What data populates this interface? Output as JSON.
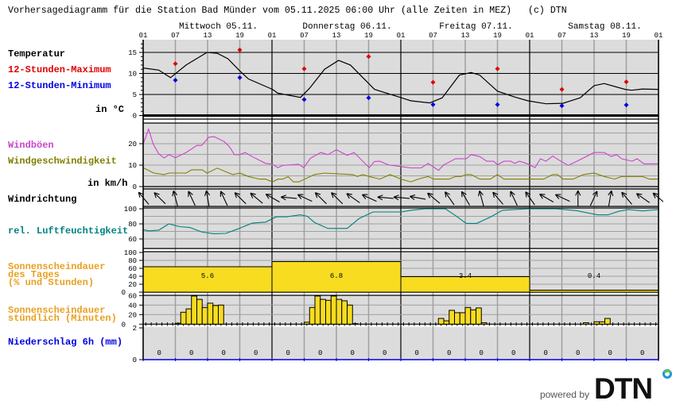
{
  "title": "Vorhersagediagramm für die Station Bad Münder vom 05.11.2025 06:00 Uhr (alle Zeiten in MEZ)   (c) DTN",
  "days": [
    "Mittwoch 05.11.",
    "Donnerstag 06.11.",
    "Freitag 07.11.",
    "Samstag 08.11."
  ],
  "hour_labels": [
    "01",
    "07",
    "13",
    "19",
    "01",
    "07",
    "13",
    "19",
    "01",
    "07",
    "13",
    "19",
    "01",
    "07",
    "13",
    "19",
    "01"
  ],
  "labels": {
    "temperature": "Temperatur",
    "max12": "12-Stunden-Maximum",
    "min12": "12-Stunden-Minimum",
    "temp_unit": "in °C",
    "gusts": "Windböen",
    "wind_speed": "Windgeschwindigkeit",
    "wind_unit": "in km/h",
    "wind_dir": "Windrichtung",
    "humidity": "rel. Luftfeuchtigkeit",
    "sun_day_1": "Sonnenscheindauer",
    "sun_day_2": "des Tages",
    "sun_day_3": "(% und Stunden)",
    "sun_hour_1": "Sonnenscheindauer",
    "sun_hour_2": "stündlich (Minuten)",
    "precip": "Niederschlag 6h (mm)"
  },
  "colors": {
    "panel_bg": "#dcdcdc",
    "grid": "#a0a0a0",
    "max": "#e00000",
    "min": "#0000e0",
    "gusts": "#cc44cc",
    "wind": "#808000",
    "humidity": "#008080",
    "sun_label": "#e8a020",
    "sun_fill": "#f8dc20",
    "precip": "#0000e0"
  },
  "chart_data": {
    "type": "line",
    "x_unit": "hours since 05.11. 01:00",
    "x_range": [
      0,
      96
    ],
    "temperature": {
      "ylim": [
        0,
        18
      ],
      "ticks": [
        "0",
        "5",
        "10",
        "15"
      ],
      "tick_values": [
        0,
        5,
        10,
        15
      ],
      "series": [
        [
          0,
          11.3
        ],
        [
          2.9,
          10.8
        ],
        [
          5.1,
          9.0
        ],
        [
          8,
          12
        ],
        [
          11.9,
          15.0
        ],
        [
          13.8,
          14.8
        ],
        [
          15.8,
          13.5
        ],
        [
          18,
          10.6
        ],
        [
          19.6,
          8.7
        ],
        [
          24.1,
          6.2
        ],
        [
          25.1,
          5.3
        ],
        [
          29.3,
          4.3
        ],
        [
          31,
          6.5
        ],
        [
          33.8,
          11
        ],
        [
          36.4,
          13.1
        ],
        [
          38.6,
          12
        ],
        [
          43.1,
          6.2
        ],
        [
          47.9,
          4.3
        ],
        [
          49.9,
          3.5
        ],
        [
          53.4,
          3.0
        ],
        [
          55.7,
          4.2
        ],
        [
          58.9,
          9.6
        ],
        [
          61.1,
          10.2
        ],
        [
          62.7,
          9.6
        ],
        [
          66,
          5.8
        ],
        [
          69.2,
          4.4
        ],
        [
          71.7,
          3.5
        ],
        [
          75,
          2.8
        ],
        [
          78.2,
          2.9
        ],
        [
          81.4,
          4.2
        ],
        [
          84,
          7.1
        ],
        [
          85.9,
          7.6
        ],
        [
          89.8,
          6.2
        ],
        [
          91,
          6.0
        ],
        [
          93,
          6.3
        ],
        [
          96,
          6.2
        ]
      ],
      "max12": [
        [
          6,
          12.3
        ],
        [
          18,
          15.6
        ],
        [
          30,
          11.1
        ],
        [
          42,
          14.0
        ],
        [
          54,
          7.9
        ],
        [
          66,
          11.1
        ],
        [
          78,
          6.2
        ],
        [
          90,
          8.0
        ]
      ],
      "min12": [
        [
          6,
          8.4
        ],
        [
          18,
          9.0
        ],
        [
          30,
          3.8
        ],
        [
          42,
          4.2
        ],
        [
          54,
          2.6
        ],
        [
          66,
          2.6
        ],
        [
          78,
          2.3
        ],
        [
          90,
          2.5
        ]
      ]
    },
    "wind": {
      "ylim": [
        0,
        29
      ],
      "ticks": [
        "0",
        "10",
        "20"
      ],
      "tick_values": [
        0,
        10,
        20
      ],
      "gusts": [
        [
          0,
          19.7
        ],
        [
          1,
          26.8
        ],
        [
          1.9,
          19.7
        ],
        [
          2.9,
          15.3
        ],
        [
          3.9,
          13.3
        ],
        [
          4.8,
          14.9
        ],
        [
          6,
          13.5
        ],
        [
          8,
          15.9
        ],
        [
          10,
          19.2
        ],
        [
          10.9,
          19.2
        ],
        [
          12.2,
          23
        ],
        [
          13.2,
          23.3
        ],
        [
          15.1,
          21
        ],
        [
          16.1,
          18.5
        ],
        [
          17,
          14.9
        ],
        [
          18,
          14.9
        ],
        [
          19,
          15.9
        ],
        [
          20.3,
          14
        ],
        [
          22.8,
          10.8
        ],
        [
          24.1,
          10.4
        ],
        [
          25.1,
          8.8
        ],
        [
          26,
          9.9
        ],
        [
          29,
          10.4
        ],
        [
          29.9,
          8.8
        ],
        [
          31.2,
          13.3
        ],
        [
          33.1,
          15.9
        ],
        [
          34.4,
          14.9
        ],
        [
          36,
          17.2
        ],
        [
          38,
          14.6
        ],
        [
          39.3,
          15.9
        ],
        [
          42.1,
          8.8
        ],
        [
          43.1,
          11.7
        ],
        [
          44.1,
          11.8
        ],
        [
          45.7,
          10.1
        ],
        [
          49.9,
          8.7
        ],
        [
          51.8,
          8.7
        ],
        [
          53.1,
          10.8
        ],
        [
          55,
          7.6
        ],
        [
          56,
          10.1
        ],
        [
          58.2,
          13
        ],
        [
          60.2,
          13
        ],
        [
          61.1,
          14.9
        ],
        [
          62.7,
          14
        ],
        [
          64,
          11.8
        ],
        [
          65.3,
          11.8
        ],
        [
          66,
          10.1
        ],
        [
          67.2,
          11.8
        ],
        [
          68.5,
          11.8
        ],
        [
          69.2,
          10.8
        ],
        [
          70.1,
          11.8
        ],
        [
          71.4,
          10.8
        ],
        [
          73,
          8.8
        ],
        [
          74,
          13
        ],
        [
          75,
          11.8
        ],
        [
          76.3,
          14.2
        ],
        [
          77.5,
          12.3
        ],
        [
          79.2,
          9.9
        ],
        [
          80.8,
          11.8
        ],
        [
          84,
          15.9
        ],
        [
          85.9,
          15.9
        ],
        [
          87.2,
          14
        ],
        [
          88.2,
          14.9
        ],
        [
          89.1,
          13
        ],
        [
          91.1,
          11.8
        ],
        [
          92,
          13
        ],
        [
          93.3,
          10.6
        ],
        [
          96,
          10.6
        ]
      ],
      "speed": [
        [
          0,
          8.8
        ],
        [
          2,
          6.3
        ],
        [
          3.9,
          5.6
        ],
        [
          4.8,
          6.3
        ],
        [
          8,
          6.3
        ],
        [
          9,
          7.8
        ],
        [
          11,
          7.8
        ],
        [
          11.9,
          6.3
        ],
        [
          13.8,
          8.6
        ],
        [
          16.7,
          5.6
        ],
        [
          18,
          6.3
        ],
        [
          19.6,
          4.7
        ],
        [
          21.6,
          3.5
        ],
        [
          22.8,
          3.5
        ],
        [
          24.1,
          2.2
        ],
        [
          25.1,
          3.5
        ],
        [
          26,
          3.5
        ],
        [
          27,
          4.6
        ],
        [
          28,
          2.2
        ],
        [
          29,
          2.2
        ],
        [
          31.9,
          5.6
        ],
        [
          33.8,
          6.3
        ],
        [
          39,
          5.6
        ],
        [
          39.9,
          4.7
        ],
        [
          40.9,
          5.6
        ],
        [
          42.1,
          4.7
        ],
        [
          44.1,
          3.5
        ],
        [
          46,
          5.6
        ],
        [
          48,
          3.5
        ],
        [
          49.9,
          2.2
        ],
        [
          51.2,
          3.5
        ],
        [
          53.1,
          4.7
        ],
        [
          54.1,
          3.5
        ],
        [
          57,
          3.5
        ],
        [
          58.2,
          4.7
        ],
        [
          59.2,
          4.7
        ],
        [
          60.2,
          5.6
        ],
        [
          61.1,
          5.6
        ],
        [
          62.7,
          3.5
        ],
        [
          64.7,
          3.5
        ],
        [
          66,
          5.6
        ],
        [
          67.2,
          3.5
        ],
        [
          74.6,
          3.5
        ],
        [
          76.3,
          5.6
        ],
        [
          77.2,
          5.6
        ],
        [
          78.2,
          3.5
        ],
        [
          80.1,
          3.5
        ],
        [
          82,
          5.6
        ],
        [
          84,
          6.3
        ],
        [
          85.9,
          4.7
        ],
        [
          87.8,
          3.5
        ],
        [
          89.1,
          4.7
        ],
        [
          93,
          4.7
        ],
        [
          94.3,
          3.5
        ],
        [
          96,
          3.5
        ]
      ]
    },
    "wind_direction_deg": [
      320,
      315,
      345,
      335,
      350,
      335,
      315,
      310,
      300,
      275,
      295,
      315,
      315,
      305,
      295,
      275,
      275,
      280,
      310,
      325,
      330,
      345,
      320,
      335,
      325,
      300,
      295,
      0,
      25,
      10,
      320,
      305,
      310
    ],
    "wind_direction_step_hours": 3,
    "humidity": {
      "ylim": [
        50,
        100
      ],
      "ticks": [
        "60",
        "80",
        "100"
      ],
      "tick_values": [
        60,
        80,
        100
      ],
      "series": [
        [
          0,
          72.4
        ],
        [
          1,
          70.7
        ],
        [
          2.9,
          71.7
        ],
        [
          4.8,
          80
        ],
        [
          6.8,
          76.3
        ],
        [
          8.7,
          75.2
        ],
        [
          11,
          69
        ],
        [
          13.2,
          67
        ],
        [
          15.4,
          67.4
        ],
        [
          17.7,
          73.5
        ],
        [
          20.3,
          81
        ],
        [
          22.8,
          82.3
        ],
        [
          24.8,
          89.4
        ],
        [
          26.7,
          89.4
        ],
        [
          29.3,
          92
        ],
        [
          30.6,
          90
        ],
        [
          31.9,
          82
        ],
        [
          34.4,
          74
        ],
        [
          38,
          74
        ],
        [
          40.2,
          87
        ],
        [
          42.8,
          95.8
        ],
        [
          45.4,
          95.8
        ],
        [
          48,
          95.8
        ],
        [
          49.9,
          98
        ],
        [
          52.5,
          100
        ],
        [
          56.3,
          100
        ],
        [
          58.2,
          91
        ],
        [
          60.2,
          80.6
        ],
        [
          62.1,
          80.6
        ],
        [
          64.7,
          89
        ],
        [
          66.9,
          98
        ],
        [
          69.2,
          98.9
        ],
        [
          71.7,
          100
        ],
        [
          76.9,
          100
        ],
        [
          80.8,
          97.5
        ],
        [
          84.6,
          92
        ],
        [
          86.6,
          92
        ],
        [
          88.5,
          96.5
        ],
        [
          90.4,
          98.9
        ],
        [
          93,
          97.2
        ],
        [
          96,
          98.9
        ]
      ]
    },
    "sunshine_daily": {
      "ticks": [
        "0",
        "20",
        "40",
        "60",
        "80",
        "100"
      ],
      "tick_values": [
        0,
        20,
        40,
        60,
        80,
        100
      ],
      "percent": [
        64,
        77,
        39,
        5
      ],
      "hours_labels": [
        "5.6",
        "6.8",
        "3.4",
        "0.4"
      ]
    },
    "sunshine_hourly": {
      "ticks": [
        "0",
        "20",
        "40",
        "60"
      ],
      "tick_values": [
        0,
        20,
        40,
        60
      ],
      "minutes": [
        [
          6,
          2
        ],
        [
          7,
          25
        ],
        [
          8,
          32
        ],
        [
          9,
          59
        ],
        [
          10,
          52
        ],
        [
          11,
          35
        ],
        [
          12,
          44
        ],
        [
          13,
          39
        ],
        [
          14,
          40
        ],
        [
          30,
          4
        ],
        [
          31,
          35
        ],
        [
          32,
          59
        ],
        [
          33,
          52
        ],
        [
          34,
          50
        ],
        [
          35,
          59
        ],
        [
          36,
          52
        ],
        [
          37,
          49
        ],
        [
          38,
          40
        ],
        [
          39,
          1
        ],
        [
          55,
          12
        ],
        [
          56,
          7
        ],
        [
          57,
          29
        ],
        [
          58,
          24
        ],
        [
          59,
          24
        ],
        [
          60,
          35
        ],
        [
          61,
          30
        ],
        [
          62,
          34
        ],
        [
          63,
          3
        ],
        [
          82,
          3
        ],
        [
          84,
          5
        ],
        [
          85,
          5
        ],
        [
          86,
          12
        ]
      ]
    },
    "precipitation_6h": {
      "ticks": [
        "0",
        "2"
      ],
      "tick_values": [
        0,
        2
      ],
      "values": [
        "0",
        "0",
        "0",
        "0",
        "0",
        "0",
        "0",
        "0",
        "0",
        "0",
        "0",
        "0",
        "0",
        "0",
        "0",
        "0"
      ]
    }
  },
  "footer": {
    "powered_by": "powered by",
    "logo": "DTN"
  }
}
